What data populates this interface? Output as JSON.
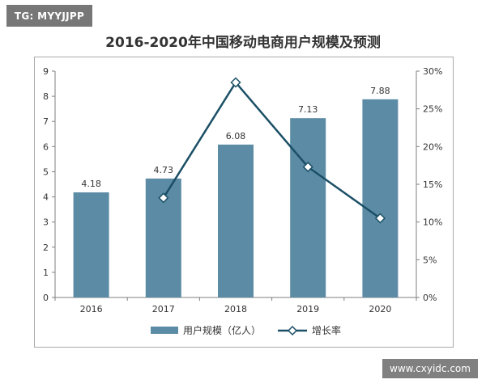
{
  "watermark_top": "TG: MYYJJPP",
  "watermark_bottom": "www.cxyidc.com",
  "colors": {
    "bar": "#5c8ca5",
    "line": "#1b4f66",
    "axis": "#7f7f7f",
    "text": "#333333"
  },
  "chart_data": {
    "type": "bar",
    "title": "2016-2020年中国移动电商用户规模及预测",
    "categories": [
      "2016",
      "2017",
      "2018",
      "2019",
      "2020"
    ],
    "series": [
      {
        "name": "用户规模（亿人）",
        "type": "bar",
        "axis": "left",
        "values": [
          4.18,
          4.73,
          6.08,
          7.13,
          7.88
        ],
        "labels": [
          "4.18",
          "4.73",
          "6.08",
          "7.13",
          "7.88"
        ]
      },
      {
        "name": "增长率",
        "type": "line",
        "axis": "right",
        "x": [
          "2017",
          "2018",
          "2019",
          "2020"
        ],
        "values": [
          13.2,
          28.5,
          17.3,
          10.5
        ],
        "marker": "diamond"
      }
    ],
    "ylim": [
      0,
      9
    ],
    "yticks": [
      "0",
      "1",
      "2",
      "3",
      "4",
      "5",
      "6",
      "7",
      "8",
      "9"
    ],
    "y2lim": [
      0,
      30
    ],
    "y2ticks": [
      "0%",
      "5%",
      "10%",
      "15%",
      "20%",
      "25%",
      "30%"
    ],
    "legend_position": "bottom-center",
    "grid": false
  }
}
